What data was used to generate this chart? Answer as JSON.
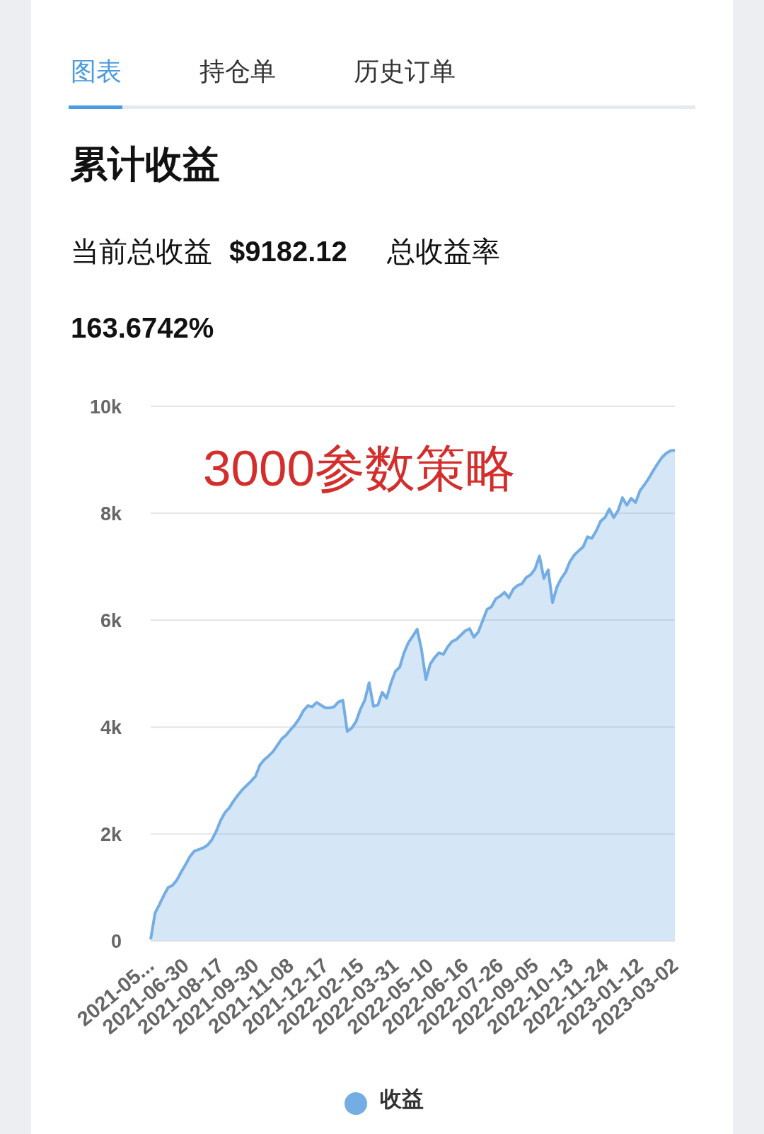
{
  "chart_data": {
    "type": "area",
    "title": "累计收益",
    "subtitle": "当前总收益 $9182.12 总收益率 163.6742%",
    "annotations": [
      "图表",
      "持仓单",
      "历史订单",
      "3000参数策略"
    ],
    "categories": [
      "2021-05...",
      null,
      null,
      null,
      null,
      null,
      null,
      null,
      "2021-06-30",
      null,
      null,
      null,
      null,
      null,
      null,
      null,
      "2021-08-17",
      null,
      null,
      null,
      null,
      null,
      null,
      null,
      "2021-09-30",
      null,
      null,
      null,
      null,
      null,
      null,
      null,
      "2021-11-08",
      null,
      null,
      null,
      null,
      null,
      null,
      null,
      "2021-12-17",
      null,
      null,
      null,
      null,
      null,
      null,
      null,
      "2022-02-15",
      null,
      null,
      null,
      null,
      null,
      null,
      null,
      "2022-03-31",
      null,
      null,
      null,
      null,
      null,
      null,
      null,
      "2022-05-10",
      null,
      null,
      null,
      null,
      null,
      null,
      null,
      "2022-06-16",
      null,
      null,
      null,
      null,
      null,
      null,
      null,
      "2022-07-26",
      null,
      null,
      null,
      null,
      null,
      null,
      null,
      "2022-09-05",
      null,
      null,
      null,
      null,
      null,
      null,
      null,
      "2022-10-13",
      null,
      null,
      null,
      null,
      null,
      null,
      null,
      "2022-11-24",
      null,
      null,
      null,
      null,
      null,
      null,
      null,
      "2023-01-12",
      null,
      null,
      null,
      null,
      null,
      null,
      null,
      "2023-03-02"
    ],
    "series": [
      {
        "name": "收益",
        "color": "#74ade3",
        "values": [
          30,
          520,
          680,
          850,
          1000,
          1040,
          1140,
          1290,
          1430,
          1580,
          1680,
          1710,
          1740,
          1790,
          1890,
          2050,
          2250,
          2400,
          2490,
          2620,
          2730,
          2830,
          2910,
          2990,
          3080,
          3290,
          3390,
          3460,
          3540,
          3660,
          3780,
          3850,
          3950,
          4040,
          4160,
          4310,
          4400,
          4380,
          4460,
          4410,
          4360,
          4360,
          4380,
          4470,
          4500,
          3920,
          3980,
          4100,
          4330,
          4500,
          4830,
          4390,
          4410,
          4650,
          4540,
          4820,
          5040,
          5120,
          5390,
          5580,
          5700,
          5830,
          5450,
          4890,
          5180,
          5300,
          5390,
          5360,
          5500,
          5600,
          5640,
          5720,
          5800,
          5840,
          5680,
          5780,
          5990,
          6200,
          6250,
          6400,
          6450,
          6520,
          6420,
          6580,
          6650,
          6680,
          6800,
          6850,
          6960,
          7200,
          6780,
          6940,
          6330,
          6620,
          6780,
          6900,
          7100,
          7220,
          7300,
          7370,
          7560,
          7530,
          7670,
          7850,
          7920,
          8080,
          7920,
          8050,
          8290,
          8150,
          8280,
          8200,
          8420,
          8530,
          8650,
          8790,
          8920,
          9040,
          9120,
          9170,
          9180
        ]
      }
    ],
    "ylim": [
      0,
      10000
    ],
    "yticks": [
      0,
      {
        "value": 2000,
        "label": "2k"
      },
      {
        "value": 4000,
        "label": "4k"
      },
      {
        "value": 6000,
        "label": "6k"
      },
      {
        "value": 8000,
        "label": "8k"
      },
      {
        "value": 10000,
        "label": "10k"
      }
    ],
    "grid": "y",
    "legend": "bottom"
  }
}
